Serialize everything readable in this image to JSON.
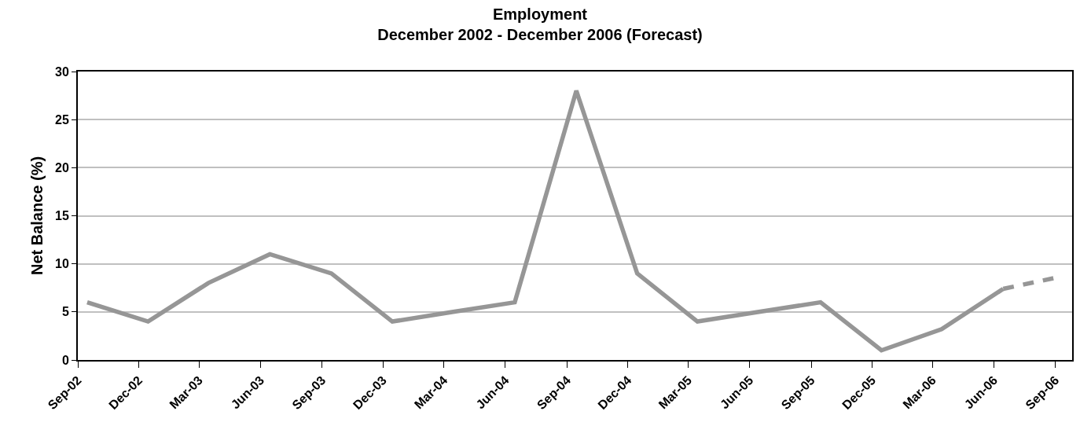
{
  "chart_data": {
    "type": "line",
    "title": "Employment\nDecember 2002 - December 2006 (Forecast)",
    "ylabel": "Net Balance (%)",
    "series": [
      {
        "color": "#969696",
        "line_style": "solid",
        "x": [
          "2002-09-15",
          "2002-12-15",
          "2003-03-15",
          "2003-06-15",
          "2003-09-15",
          "2003-12-15",
          "2004-03-15",
          "2004-06-15",
          "2004-09-15",
          "2004-12-15",
          "2005-03-15",
          "2005-06-15",
          "2005-09-15",
          "2005-12-15",
          "2006-03-15",
          "2006-06-15"
        ],
        "values": [
          6,
          4,
          8,
          11,
          9,
          4,
          5,
          6,
          28,
          9,
          4,
          5,
          6,
          1,
          3.2,
          7.4
        ]
      },
      {
        "color": "#969696",
        "line_style": "dashed",
        "x": [
          "2006-06-15",
          "2006-08-29"
        ],
        "values": [
          7.4,
          8.5
        ]
      }
    ],
    "xlim": [
      "2002-09-01",
      "2006-09-26"
    ],
    "xticks": [
      {
        "value": "2002-09-01",
        "label": "Sep-02"
      },
      {
        "value": "2002-12-01",
        "label": "Dec-02"
      },
      {
        "value": "2003-03-01",
        "label": "Mar-03"
      },
      {
        "value": "2003-06-01",
        "label": "Jun-03"
      },
      {
        "value": "2003-09-01",
        "label": "Sep-03"
      },
      {
        "value": "2003-12-01",
        "label": "Dec-03"
      },
      {
        "value": "2004-03-01",
        "label": "Mar-04"
      },
      {
        "value": "2004-06-01",
        "label": "Jun-04"
      },
      {
        "value": "2004-09-01",
        "label": "Sep-04"
      },
      {
        "value": "2004-12-01",
        "label": "Dec-04"
      },
      {
        "value": "2005-03-01",
        "label": "Mar-05"
      },
      {
        "value": "2005-06-01",
        "label": "Jun-05"
      },
      {
        "value": "2005-09-01",
        "label": "Sep-05"
      },
      {
        "value": "2005-12-01",
        "label": "Dec-05"
      },
      {
        "value": "2006-03-01",
        "label": "Mar-06"
      },
      {
        "value": "2006-06-01",
        "label": "Jun-06"
      },
      {
        "value": "2006-09-01",
        "label": "Sep-06"
      }
    ],
    "ylim": [
      0,
      30
    ],
    "yticks": [
      0,
      5,
      10,
      15,
      20,
      25,
      30
    ],
    "grid": "y",
    "marker": "none"
  }
}
